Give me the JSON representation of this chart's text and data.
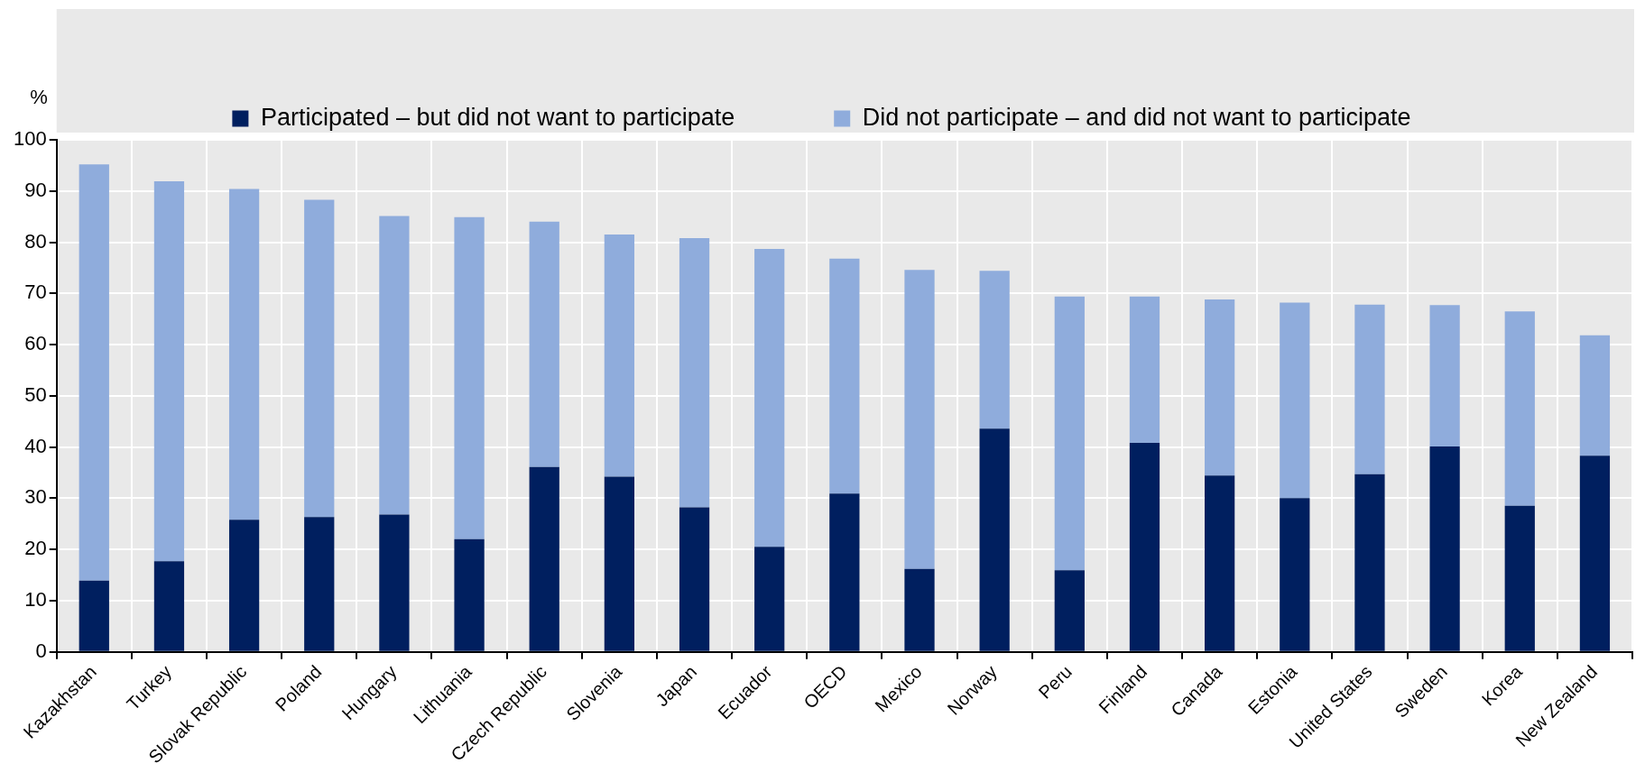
{
  "chart_data": {
    "type": "bar",
    "stacked": true,
    "ylabel": "%",
    "categories": [
      "Kazakhstan",
      "Turkey",
      "Slovak Republic",
      "Poland",
      "Hungary",
      "Lithuania",
      "Czech Republic",
      "Slovenia",
      "Japan",
      "Ecuador",
      "OECD",
      "Mexico",
      "Norway",
      "Peru",
      "Finland",
      "Canada",
      "Estonia",
      "United States",
      "Sweden",
      "Korea",
      "New Zealand"
    ],
    "series": [
      {
        "name": "Participated – but did not want to participate",
        "color": "#001f5f",
        "values": [
          13.9,
          17.7,
          25.8,
          26.3,
          26.8,
          22.0,
          36.1,
          34.2,
          28.2,
          20.5,
          30.9,
          16.2,
          43.6,
          15.9,
          40.8,
          34.4,
          30.0,
          34.7,
          40.1,
          28.5,
          38.3
        ]
      },
      {
        "name": "Did not participate – and did not want to participate",
        "color": "#8facdc",
        "values": [
          81.3,
          74.2,
          64.6,
          62.0,
          58.3,
          62.9,
          47.9,
          47.3,
          52.6,
          58.2,
          45.9,
          58.4,
          30.8,
          53.5,
          28.6,
          34.4,
          38.2,
          33.1,
          27.6,
          38.0,
          23.5
        ]
      }
    ],
    "ylim": [
      0,
      100
    ],
    "yticks": [
      0,
      10,
      20,
      30,
      40,
      50,
      60,
      70,
      80,
      90,
      100
    ],
    "grid": true,
    "legend": "top"
  }
}
